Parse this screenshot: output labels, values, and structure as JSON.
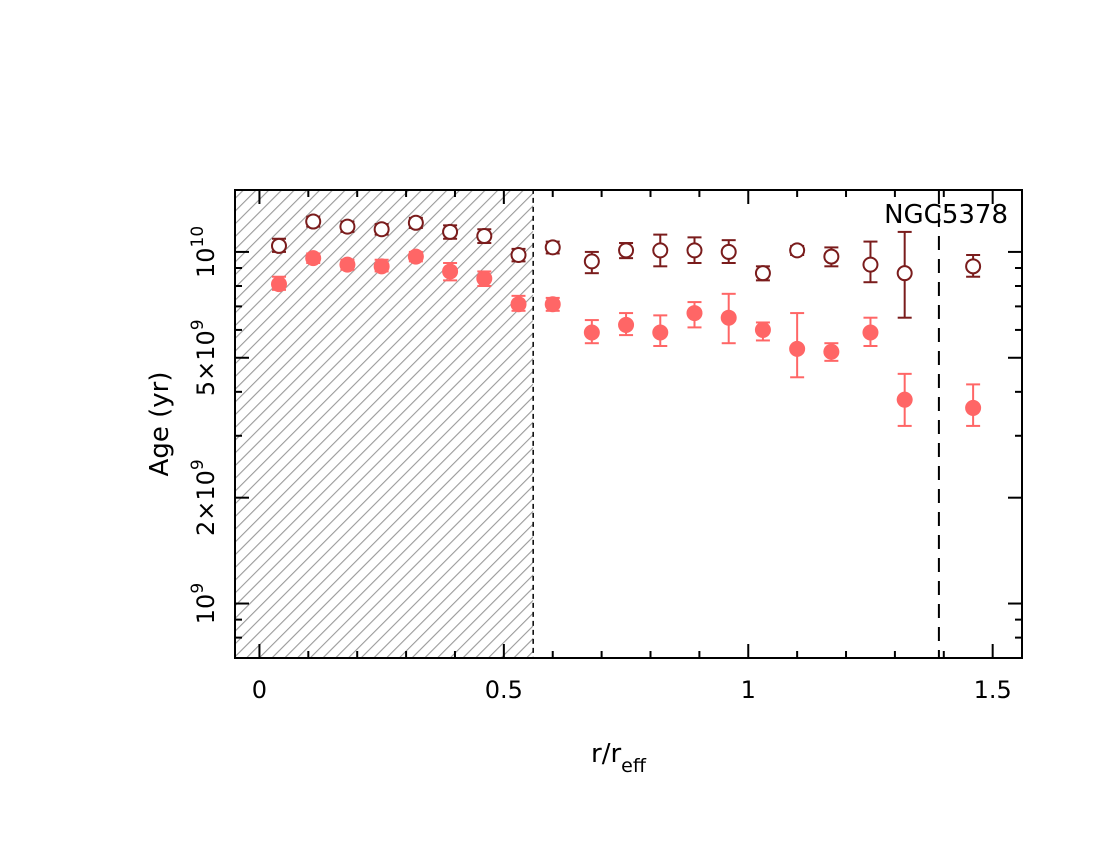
{
  "chart_data": {
    "type": "scatter",
    "title": "",
    "annotation": "NGC5378",
    "xlabel": {
      "main": "r/r",
      "sub": "eff"
    },
    "ylabel": "Age (yr)",
    "xlim": [
      -0.05,
      1.56
    ],
    "ylim": [
      700000000,
      15000000000
    ],
    "y_scale": "log",
    "x_ticks": [
      {
        "value": 0,
        "label": "0"
      },
      {
        "value": 0.5,
        "label": "0.5"
      },
      {
        "value": 1,
        "label": "1"
      },
      {
        "value": 1.5,
        "label": "1.5"
      }
    ],
    "y_ticks": [
      {
        "value": 1000000000,
        "base": "10",
        "exp": "9"
      },
      {
        "value": 2000000000,
        "base": "2×10",
        "exp": "9"
      },
      {
        "value": 5000000000,
        "base": "5×10",
        "exp": "9"
      },
      {
        "value": 10000000000,
        "base": "10",
        "exp": "10"
      }
    ],
    "shaded_region": {
      "x_start": -0.05,
      "x_end": 0.56,
      "pattern": "hatched"
    },
    "vertical_line": {
      "x": 1.39,
      "style": "dashed"
    },
    "colors": {
      "open_series": "#7a1c1c",
      "filled_series": "#ff6666",
      "hatch": "#9a9a9a"
    },
    "series": [
      {
        "marker": "open-circle",
        "points": [
          {
            "x": 0.04,
            "y": 10400000000,
            "ylo": 10000000000,
            "yhi": 10900000000
          },
          {
            "x": 0.11,
            "y": 12200000000,
            "ylo": 11800000000,
            "yhi": 12600000000
          },
          {
            "x": 0.18,
            "y": 11800000000,
            "ylo": 11400000000,
            "yhi": 12200000000
          },
          {
            "x": 0.25,
            "y": 11600000000,
            "ylo": 11200000000,
            "yhi": 12000000000
          },
          {
            "x": 0.32,
            "y": 12100000000,
            "ylo": 11700000000,
            "yhi": 12500000000
          },
          {
            "x": 0.39,
            "y": 11400000000,
            "ylo": 10900000000,
            "yhi": 11900000000
          },
          {
            "x": 0.46,
            "y": 11100000000,
            "ylo": 10600000000,
            "yhi": 11600000000
          },
          {
            "x": 0.53,
            "y": 9800000000,
            "ylo": 9400000000,
            "yhi": 10200000000
          },
          {
            "x": 0.6,
            "y": 10300000000,
            "ylo": 9900000000,
            "yhi": 10700000000
          },
          {
            "x": 0.68,
            "y": 9400000000,
            "ylo": 8700000000,
            "yhi": 10000000000
          },
          {
            "x": 0.75,
            "y": 10100000000,
            "ylo": 9600000000,
            "yhi": 10600000000
          },
          {
            "x": 0.82,
            "y": 10100000000,
            "ylo": 9100000000,
            "yhi": 11200000000
          },
          {
            "x": 0.89,
            "y": 10100000000,
            "ylo": 9300000000,
            "yhi": 11000000000
          },
          {
            "x": 0.96,
            "y": 10000000000,
            "ylo": 9300000000,
            "yhi": 10800000000
          },
          {
            "x": 1.03,
            "y": 8700000000,
            "ylo": 8300000000,
            "yhi": 9100000000
          },
          {
            "x": 1.1,
            "y": 10100000000,
            "ylo": 9800000000,
            "yhi": 10400000000
          },
          {
            "x": 1.17,
            "y": 9700000000,
            "ylo": 9100000000,
            "yhi": 10300000000
          },
          {
            "x": 1.25,
            "y": 9200000000,
            "ylo": 8200000000,
            "yhi": 10700000000
          },
          {
            "x": 1.32,
            "y": 8700000000,
            "ylo": 6500000000,
            "yhi": 11400000000
          },
          {
            "x": 1.46,
            "y": 9100000000,
            "ylo": 8500000000,
            "yhi": 9800000000
          }
        ]
      },
      {
        "marker": "filled-circle",
        "points": [
          {
            "x": 0.04,
            "y": 8100000000,
            "ylo": 7800000000,
            "yhi": 8500000000
          },
          {
            "x": 0.11,
            "y": 9600000000,
            "ylo": 9300000000,
            "yhi": 9900000000
          },
          {
            "x": 0.18,
            "y": 9200000000,
            "ylo": 8900000000,
            "yhi": 9500000000
          },
          {
            "x": 0.25,
            "y": 9100000000,
            "ylo": 8800000000,
            "yhi": 9500000000
          },
          {
            "x": 0.32,
            "y": 9700000000,
            "ylo": 9400000000,
            "yhi": 10000000000
          },
          {
            "x": 0.39,
            "y": 8800000000,
            "ylo": 8300000000,
            "yhi": 9300000000
          },
          {
            "x": 0.46,
            "y": 8400000000,
            "ylo": 8000000000,
            "yhi": 8800000000
          },
          {
            "x": 0.53,
            "y": 7100000000,
            "ylo": 6800000000,
            "yhi": 7500000000
          },
          {
            "x": 0.6,
            "y": 7100000000,
            "ylo": 6800000000,
            "yhi": 7400000000
          },
          {
            "x": 0.68,
            "y": 5900000000,
            "ylo": 5500000000,
            "yhi": 6400000000
          },
          {
            "x": 0.75,
            "y": 6200000000,
            "ylo": 5800000000,
            "yhi": 6700000000
          },
          {
            "x": 0.82,
            "y": 5900000000,
            "ylo": 5400000000,
            "yhi": 6600000000
          },
          {
            "x": 0.89,
            "y": 6700000000,
            "ylo": 6100000000,
            "yhi": 7200000000
          },
          {
            "x": 0.96,
            "y": 6500000000,
            "ylo": 5500000000,
            "yhi": 7600000000
          },
          {
            "x": 1.03,
            "y": 6000000000,
            "ylo": 5600000000,
            "yhi": 6300000000
          },
          {
            "x": 1.1,
            "y": 5300000000,
            "ylo": 4400000000,
            "yhi": 6700000000
          },
          {
            "x": 1.17,
            "y": 5200000000,
            "ylo": 4900000000,
            "yhi": 5500000000
          },
          {
            "x": 1.25,
            "y": 5900000000,
            "ylo": 5400000000,
            "yhi": 6500000000
          },
          {
            "x": 1.32,
            "y": 3800000000,
            "ylo": 3200000000,
            "yhi": 4500000000
          },
          {
            "x": 1.46,
            "y": 3600000000,
            "ylo": 3200000000,
            "yhi": 4200000000
          }
        ]
      }
    ]
  }
}
